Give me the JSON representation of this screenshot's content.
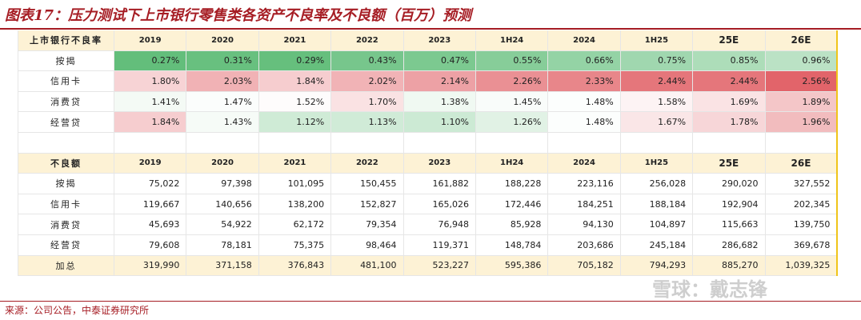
{
  "title": "图表17：压力测试下上市银行零售类各资产不良率及不良额（百万）预测",
  "source": "来源：公司公告，中泰证券研究所",
  "watermark": "雪球：戴志锋",
  "colors": {
    "title_red": "#a61d24",
    "header_bg": "#fdf2d5",
    "high": "#e2646a",
    "low": "#63be7b"
  },
  "rate_table": {
    "header": [
      "上市银行不良率",
      "2019",
      "2020",
      "2021",
      "2022",
      "2023",
      "1H24",
      "2024",
      "1H25",
      "25E",
      "26E"
    ],
    "rows": [
      {
        "label": "按揭",
        "values": [
          "0.27%",
          "0.31%",
          "0.29%",
          "0.43%",
          "0.47%",
          "0.55%",
          "0.66%",
          "0.75%",
          "0.85%",
          "0.96%"
        ]
      },
      {
        "label": "信用卡",
        "values": [
          "1.80%",
          "2.03%",
          "1.84%",
          "2.02%",
          "2.14%",
          "2.26%",
          "2.33%",
          "2.44%",
          "2.44%",
          "2.56%"
        ]
      },
      {
        "label": "消费贷",
        "values": [
          "1.41%",
          "1.47%",
          "1.52%",
          "1.70%",
          "1.38%",
          "1.45%",
          "1.48%",
          "1.58%",
          "1.69%",
          "1.89%"
        ]
      },
      {
        "label": "经营贷",
        "values": [
          "1.84%",
          "1.43%",
          "1.12%",
          "1.13%",
          "1.10%",
          "1.26%",
          "1.48%",
          "1.67%",
          "1.78%",
          "1.96%"
        ]
      }
    ]
  },
  "amount_table": {
    "header": [
      "不良额",
      "2019",
      "2020",
      "2021",
      "2022",
      "2023",
      "1H24",
      "2024",
      "1H25",
      "25E",
      "26E"
    ],
    "rows": [
      {
        "label": "按揭",
        "values": [
          "75,022",
          "97,398",
          "101,095",
          "150,455",
          "161,882",
          "188,228",
          "223,116",
          "256,028",
          "290,020",
          "327,552"
        ]
      },
      {
        "label": "信用卡",
        "values": [
          "119,667",
          "140,656",
          "138,200",
          "152,827",
          "165,026",
          "172,446",
          "184,251",
          "188,184",
          "192,904",
          "202,345"
        ]
      },
      {
        "label": "消费贷",
        "values": [
          "45,693",
          "54,922",
          "62,172",
          "79,354",
          "76,948",
          "85,928",
          "94,130",
          "104,897",
          "115,663",
          "139,750"
        ]
      },
      {
        "label": "经营贷",
        "values": [
          "79,608",
          "78,181",
          "75,375",
          "98,464",
          "119,371",
          "148,784",
          "203,686",
          "245,184",
          "286,682",
          "369,678"
        ]
      }
    ],
    "total": {
      "label": "加总",
      "values": [
        "319,990",
        "371,158",
        "376,843",
        "481,100",
        "523,227",
        "595,386",
        "705,182",
        "794,293",
        "885,270",
        "1,039,325"
      ]
    }
  }
}
